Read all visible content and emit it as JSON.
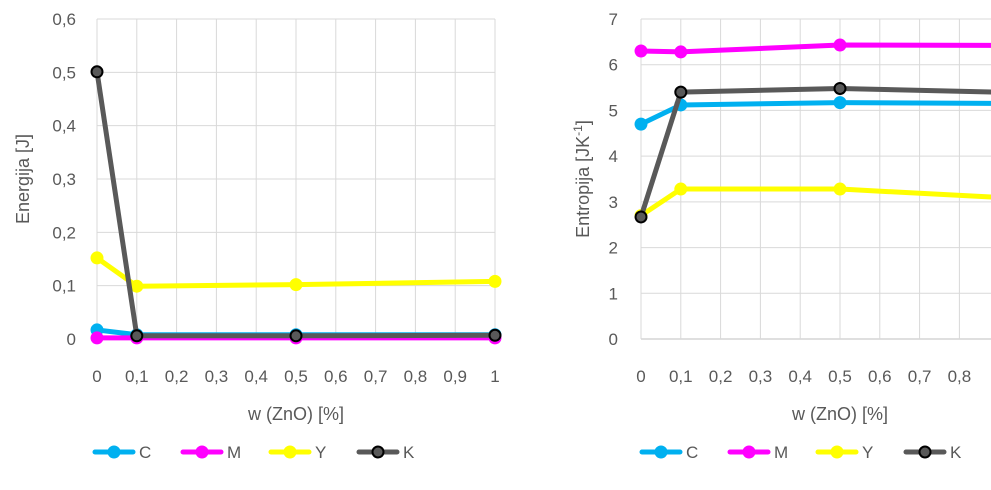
{
  "chart_data": [
    {
      "type": "line",
      "title": "",
      "xlabel": "w (ZnO) [%]",
      "ylabel": "Energija [J]",
      "ylabel_sup": "",
      "ylabel_tail": "",
      "x_ticks": [
        "0",
        "0,1",
        "0,2",
        "0,3",
        "0,4",
        "0,5",
        "0,6",
        "0,7",
        "0,8",
        "0,9",
        "1"
      ],
      "y_ticks": [
        "0",
        "0,1",
        "0,2",
        "0,3",
        "0,4",
        "0,5",
        "0,6"
      ],
      "xlim": [
        0,
        1
      ],
      "ylim": [
        0,
        0.6
      ],
      "grid": "vertical and horizontal",
      "legend_position": "bottom",
      "x": [
        0,
        0.1,
        0.5,
        1
      ],
      "series": [
        {
          "name": "C",
          "color": "#00b0f0",
          "values": [
            0.017,
            0.008,
            0.008,
            0.008
          ]
        },
        {
          "name": "M",
          "color": "#ff00ff",
          "values": [
            0.002,
            0.002,
            0.002,
            0.002
          ]
        },
        {
          "name": "Y",
          "color": "#ffff00",
          "values": [
            0.152,
            0.099,
            0.102,
            0.108
          ]
        },
        {
          "name": "K",
          "color": "#595959",
          "values": [
            0.501,
            0.006,
            0.006,
            0.007
          ]
        }
      ]
    },
    {
      "type": "line",
      "title": "",
      "xlabel": "w (ZnO) [%]",
      "ylabel": "Entropija [JK",
      "ylabel_sup": "-1",
      "ylabel_tail": "]",
      "x_ticks": [
        "0",
        "0,1",
        "0,2",
        "0,3",
        "0,4",
        "0,5",
        "0,6",
        "0,7",
        "0,8"
      ],
      "y_ticks": [
        "0",
        "1",
        "2",
        "3",
        "4",
        "5",
        "6",
        "7"
      ],
      "xlim": [
        0,
        1
      ],
      "ylim": [
        0,
        7
      ],
      "grid": "vertical and horizontal",
      "legend_position": "bottom",
      "x": [
        0,
        0.1,
        0.5,
        1
      ],
      "series": [
        {
          "name": "C",
          "color": "#00b0f0",
          "values": [
            4.7,
            5.12,
            5.17,
            5.15
          ]
        },
        {
          "name": "M",
          "color": "#ff00ff",
          "values": [
            6.3,
            6.28,
            6.43,
            6.42
          ]
        },
        {
          "name": "Y",
          "color": "#ffff00",
          "values": [
            2.7,
            3.28,
            3.28,
            3.05
          ]
        },
        {
          "name": "K",
          "color": "#595959",
          "values": [
            2.67,
            5.4,
            5.48,
            5.38
          ]
        }
      ]
    }
  ]
}
